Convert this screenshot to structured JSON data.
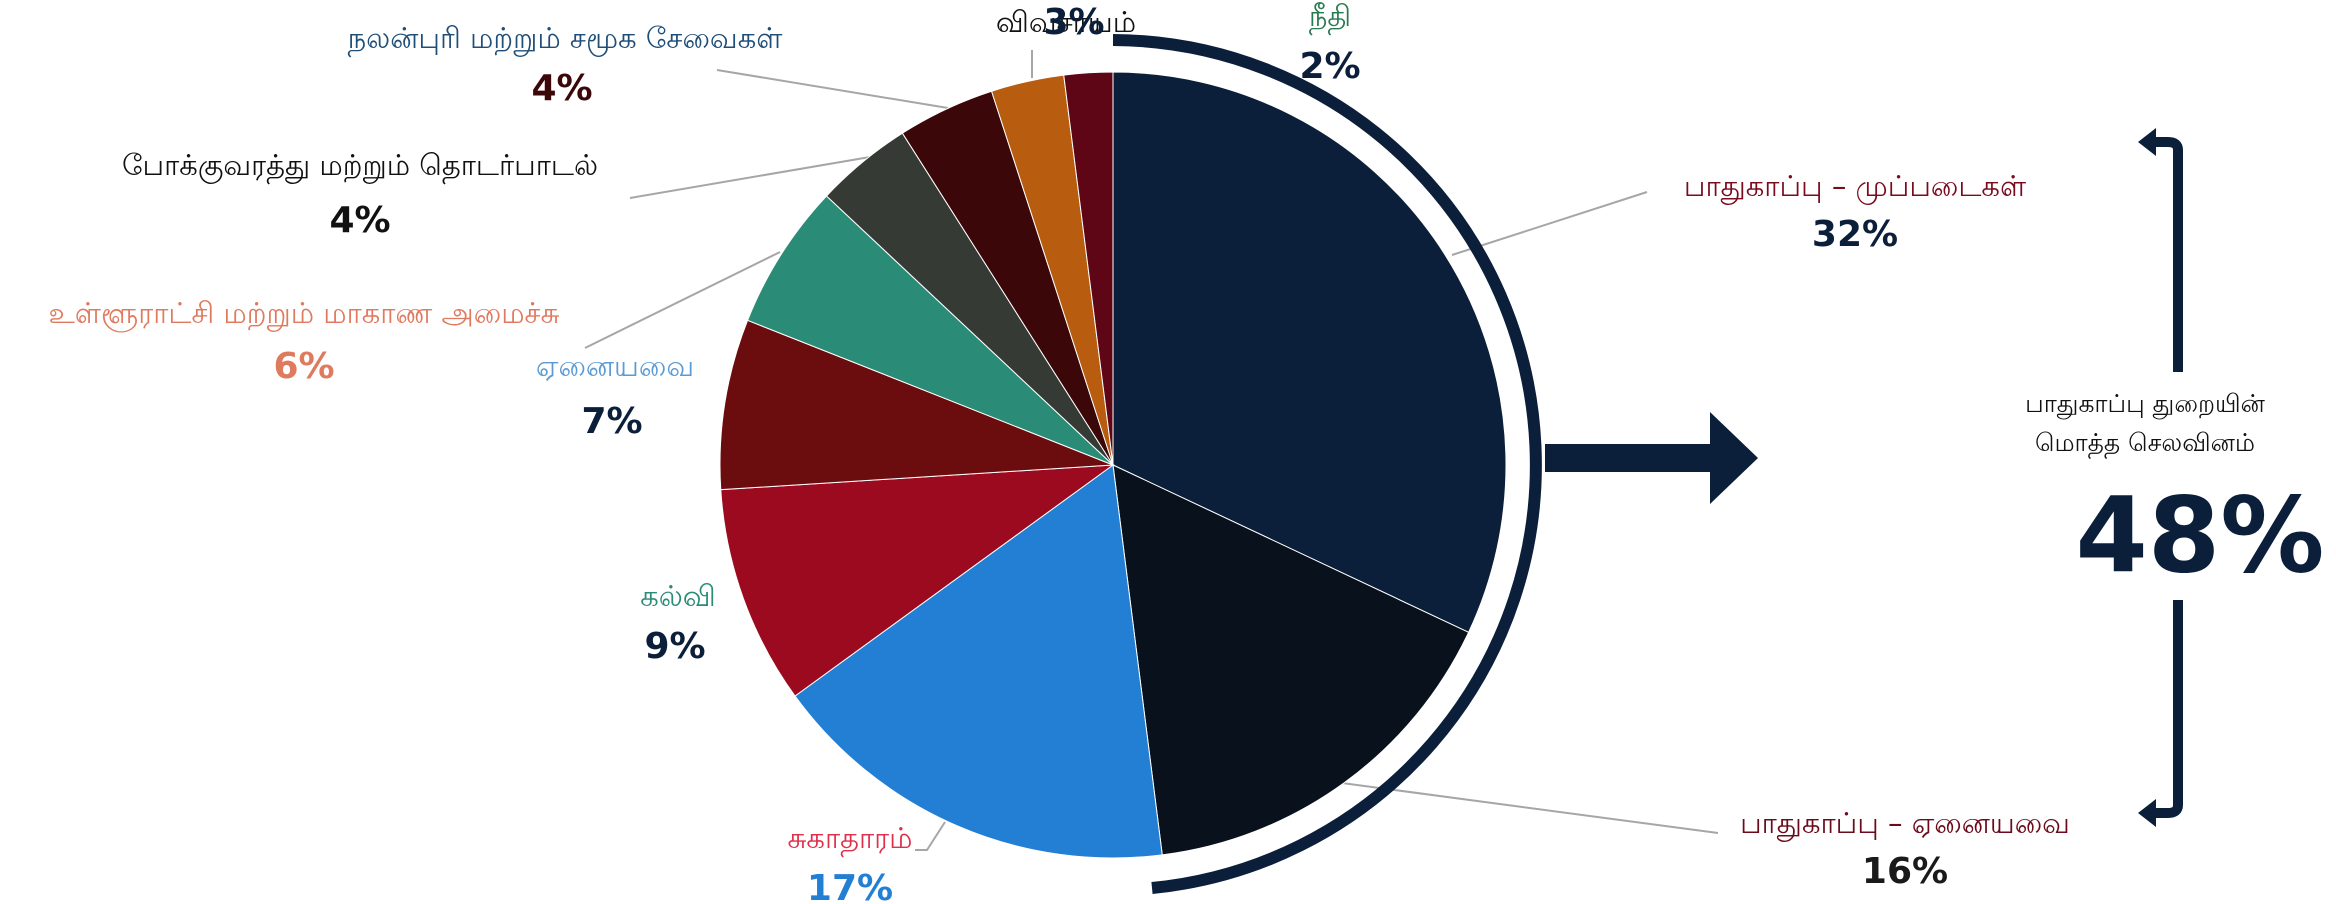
{
  "chart_data": {
    "type": "pie",
    "categories": [
      "பாதுகாப்பு – முப்படைகள்",
      "பாதுகாப்பு – ஏனையவை",
      "சுகாதாரம்",
      "கல்வி",
      "ஏனையவை",
      "உள்ளூராட்சி மற்றும் மாகாண அமைச்சு",
      "போக்குவரத்து மற்றும் தொடர்பாடல்",
      "நலன்புரி மற்றும் சமூக சேவைகள்",
      "விவசாயம்",
      "நீதி"
    ],
    "values": [
      32,
      16,
      17,
      9,
      7,
      6,
      4,
      4,
      3,
      2
    ],
    "value_labels": [
      "32%",
      "16%",
      "17%",
      "9%",
      "7%",
      "6%",
      "4%",
      "4%",
      "3%",
      "2%"
    ],
    "colors": [
      "#0b1f3a",
      "#08111c",
      "#237fd4",
      "#9b0a1e",
      "#6b0c0e",
      "#2a8c76",
      "#363a35",
      "#3b0709",
      "#b85c0f",
      "#5e0516"
    ],
    "label_colors": [
      "#7a0a1e",
      "#6b0a1a",
      "#e0304a",
      "#2a8c76",
      "#5a9bd5",
      "#e07a5f",
      "#111111",
      "#1f4e79",
      "#111111",
      "#2a7a50"
    ],
    "value_label_colors": [
      "#0b1f3a",
      "#1a1a1a",
      "#237fd4",
      "#0b1f3a",
      "#0b1f3a",
      "#e07a5f",
      "#111111",
      "#3b0709",
      "#0b1f3a",
      "#0b1f3a"
    ],
    "annotation": {
      "text": [
        "பாதுகாப்பு துறையின்",
        "மொத்த செலவினம்"
      ],
      "value": "48%"
    }
  }
}
